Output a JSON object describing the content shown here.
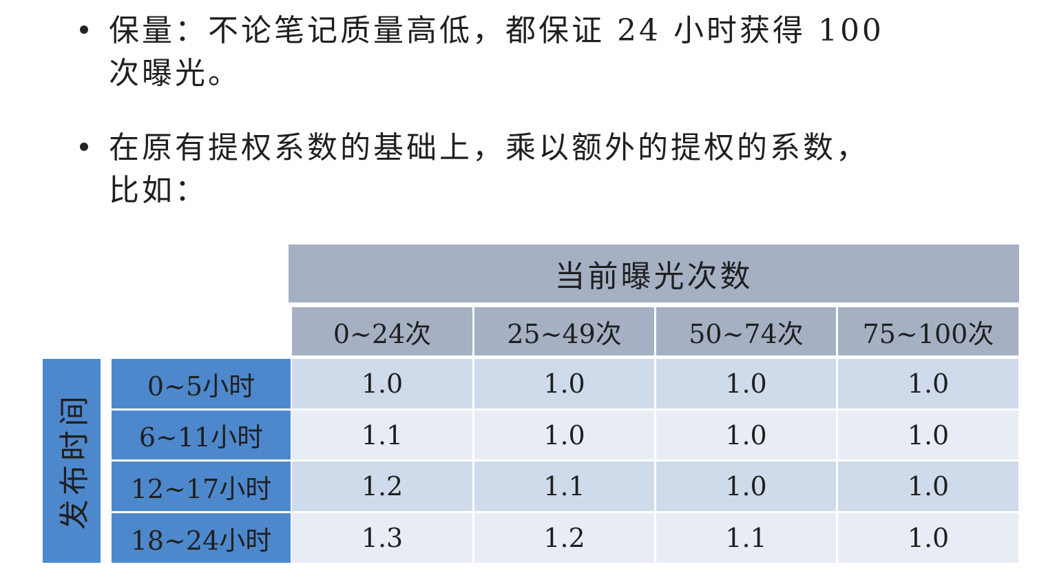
{
  "bullets": [
    "保量：不论笔记质量高低，都保证 24 小时获得 100\n次曝光。",
    "在原有提权系数的基础上，乘以额外的提权的系数，\n比如："
  ],
  "table": {
    "top_header": "当前曝光次数",
    "side_header": "发布时间",
    "columns": [
      "0~24次",
      "25~49次",
      "50~74次",
      "75~100次"
    ],
    "rows": [
      {
        "label": "0~5小时",
        "values": [
          "1.0",
          "1.0",
          "1.0",
          "1.0"
        ]
      },
      {
        "label": "6~11小时",
        "values": [
          "1.1",
          "1.0",
          "1.0",
          "1.0"
        ]
      },
      {
        "label": "12~17小时",
        "values": [
          "1.2",
          "1.1",
          "1.0",
          "1.0"
        ]
      },
      {
        "label": "18~24小时",
        "values": [
          "1.3",
          "1.2",
          "1.1",
          "1.0"
        ]
      }
    ]
  },
  "colors": {
    "header_bg": "#a5b0c3",
    "row_header_bg": "#4e88cc",
    "row_odd_bg": "#cfdbea",
    "row_even_bg": "#e8edf5"
  }
}
